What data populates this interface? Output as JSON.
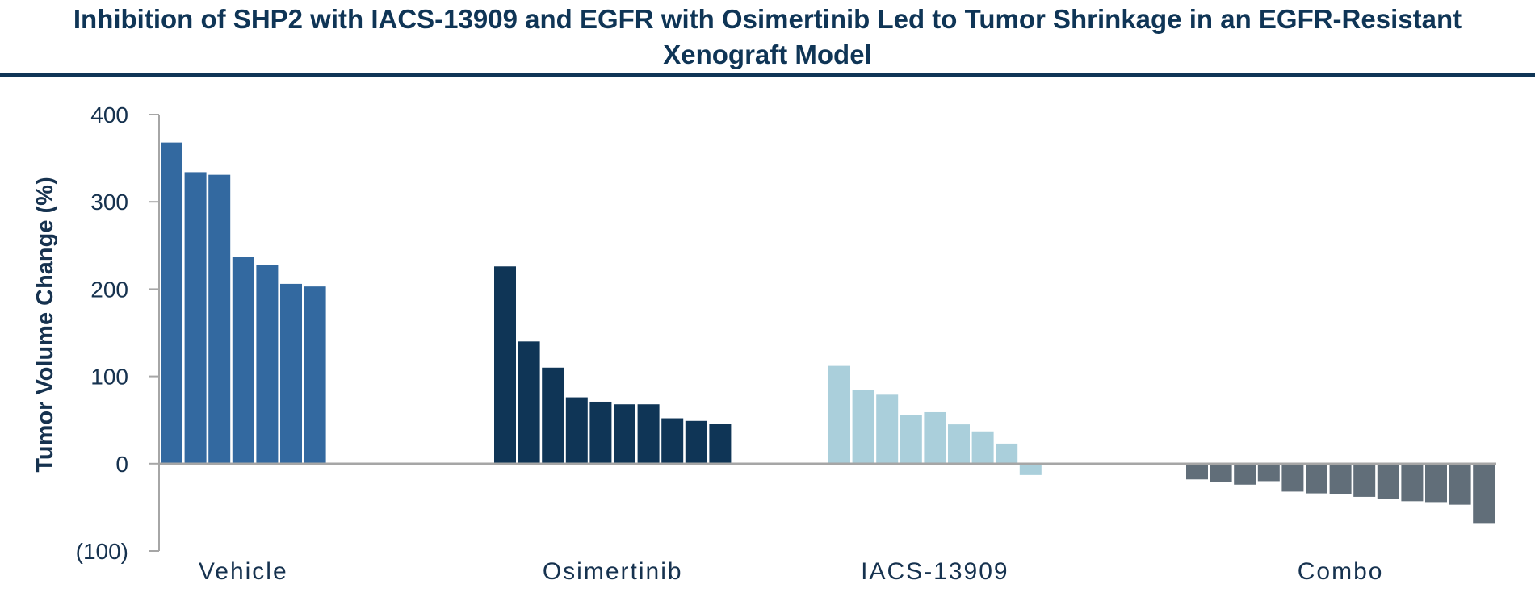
{
  "chart_data": {
    "type": "bar",
    "title": "Inhibition of SHP2 with IACS-13909 and EGFR with Osimertinib Led to Tumor Shrinkage in an EGFR-Resistant Xenograft Model",
    "xlabel": "",
    "ylabel": "Tumor Volume Change (%)",
    "ylim": [
      -100,
      400
    ],
    "yticks": [
      400,
      300,
      200,
      100,
      0,
      -100
    ],
    "ytick_labels": [
      "400",
      "300",
      "200",
      "100",
      "0",
      "(100)"
    ],
    "grid": false,
    "series": [
      {
        "name": "Vehicle",
        "color": "#3369a0",
        "values": [
          368,
          334,
          331,
          237,
          228,
          206,
          203
        ]
      },
      {
        "name": "Osimertinib",
        "color": "#0f3556",
        "values": [
          226,
          140,
          110,
          76,
          71,
          68,
          68,
          52,
          49,
          46
        ]
      },
      {
        "name": "IACS-13909",
        "color": "#aacfdb",
        "values": [
          112,
          84,
          79,
          56,
          59,
          45,
          37,
          23,
          -13
        ]
      },
      {
        "name": "Combo",
        "color": "#616e79",
        "values": [
          -18,
          -21,
          -24,
          -20,
          -32,
          -34,
          -35,
          -38,
          -40,
          -43,
          -44,
          -47,
          -68
        ]
      }
    ]
  }
}
